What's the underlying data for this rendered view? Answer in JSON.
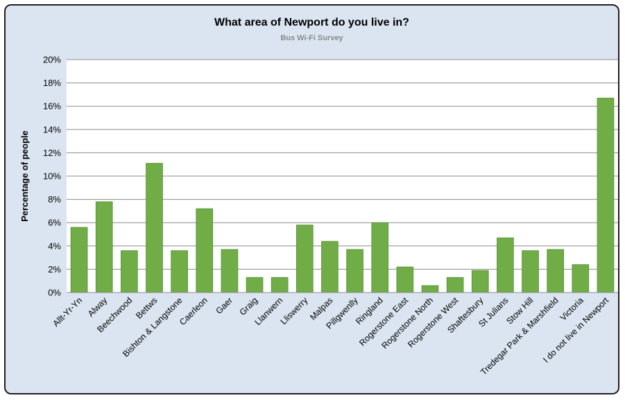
{
  "chart": {
    "title": "What area of Newport do you live in?",
    "subtitle": "Bus Wi-Fi Survey"
  },
  "colors": {
    "bar": "#70ad47",
    "bar_stroke": "#5a8f38",
    "background": "#dbe5f1",
    "plot_area": "#ffffff",
    "grid": "#8c8c8c"
  },
  "chart_data": {
    "type": "bar",
    "title": "What area of Newport do you live in?",
    "subtitle": "Bus Wi-Fi Survey",
    "xlabel": "",
    "ylabel": "Percentage of people",
    "ylim": [
      0,
      20
    ],
    "yticks": [
      "0%",
      "2%",
      "4%",
      "6%",
      "8%",
      "10%",
      "12%",
      "14%",
      "16%",
      "18%",
      "20%"
    ],
    "grid": true,
    "categories": [
      "Allt-Yr-Yn",
      "Alway",
      "Beechwood",
      "Bettws",
      "Bishton & Langstone",
      "Caerleon",
      "Gaer",
      "Graig",
      "Llanwern",
      "Lliswerry",
      "Malpas",
      "Pillgwenlly",
      "Ringland",
      "Rogerstone East",
      "Rogerstone North",
      "Rogerstone West",
      "Shaftesbury",
      "St Julians",
      "Stow Hill",
      "Tredegar Park & Marshfield",
      "Victoria",
      "I do not live in Newport"
    ],
    "values": [
      5.6,
      7.8,
      3.6,
      11.1,
      3.6,
      7.2,
      3.7,
      1.3,
      1.3,
      5.8,
      4.4,
      3.7,
      6.0,
      2.2,
      0.6,
      1.3,
      1.9,
      4.7,
      3.6,
      3.7,
      2.4,
      16.7
    ]
  }
}
